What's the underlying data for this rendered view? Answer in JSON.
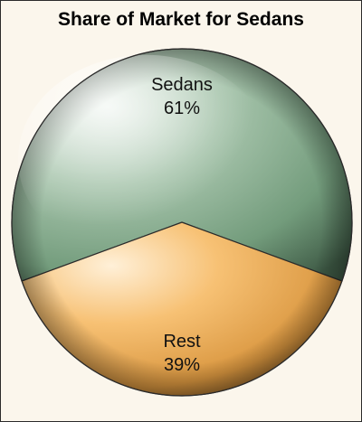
{
  "chart_data": {
    "type": "pie",
    "title": "Share of Market for Sedans",
    "slices": [
      {
        "label": "Sedans",
        "value": 61,
        "percent_label": "61%",
        "color": "#7fa687"
      },
      {
        "label": "Rest",
        "value": 39,
        "percent_label": "39%",
        "color": "#f2a84b"
      }
    ],
    "start_angle_deg": 0,
    "legend": "none",
    "style": "3d-shaded"
  },
  "colors": {
    "background": "#fbf6ec",
    "border": "#2b2b2b",
    "title": "#000000"
  }
}
